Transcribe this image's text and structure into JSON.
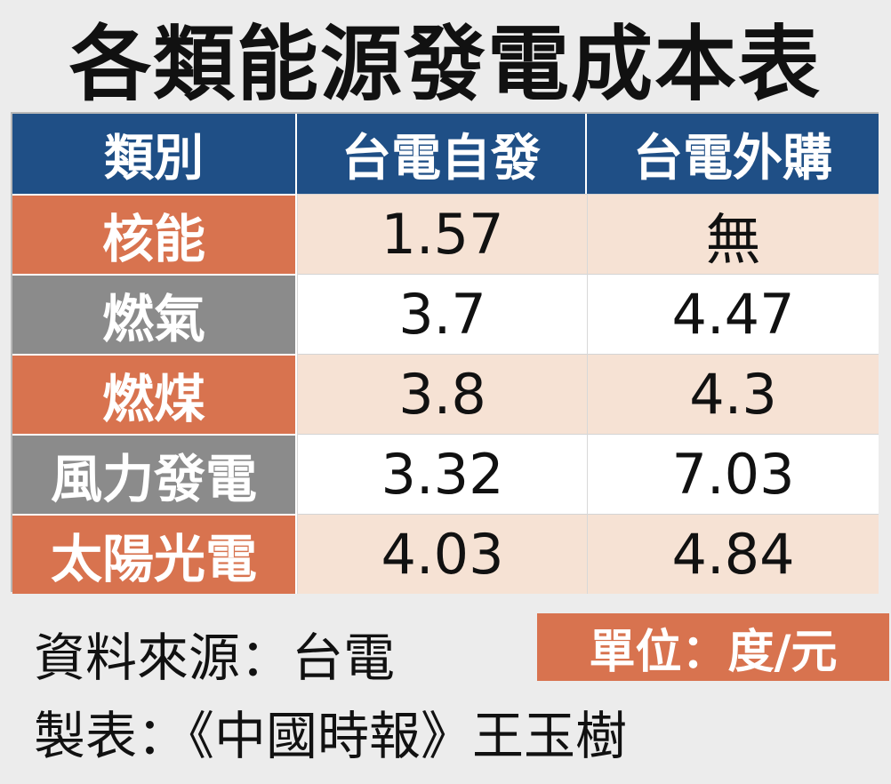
{
  "title": "各類能源發電成本表",
  "chart_data": {
    "type": "table",
    "title": "各類能源發電成本表",
    "columns": [
      "類別",
      "台電自發",
      "台電外購"
    ],
    "rows": [
      {
        "label": "核能",
        "values": [
          "1.57",
          "無"
        ],
        "tone": "warm"
      },
      {
        "label": "燃氣",
        "values": [
          "3.7",
          "4.47"
        ],
        "tone": "gray"
      },
      {
        "label": "燃煤",
        "values": [
          "3.8",
          "4.3"
        ],
        "tone": "warm"
      },
      {
        "label": "風力發電",
        "values": [
          "3.32",
          "7.03"
        ],
        "tone": "gray"
      },
      {
        "label": "太陽光電",
        "values": [
          "4.03",
          "4.84"
        ],
        "tone": "warm"
      }
    ],
    "unit": "單位：度/元"
  },
  "footer": {
    "source": "資料來源：台電",
    "maker": "製表：《中國時報》王玉樹"
  },
  "colors": {
    "header": "#1f4f86",
    "warm_label": "#d8734f",
    "gray_label": "#8b8b8b",
    "warm_fill": "#f6e2d4",
    "background": "#ececec"
  }
}
